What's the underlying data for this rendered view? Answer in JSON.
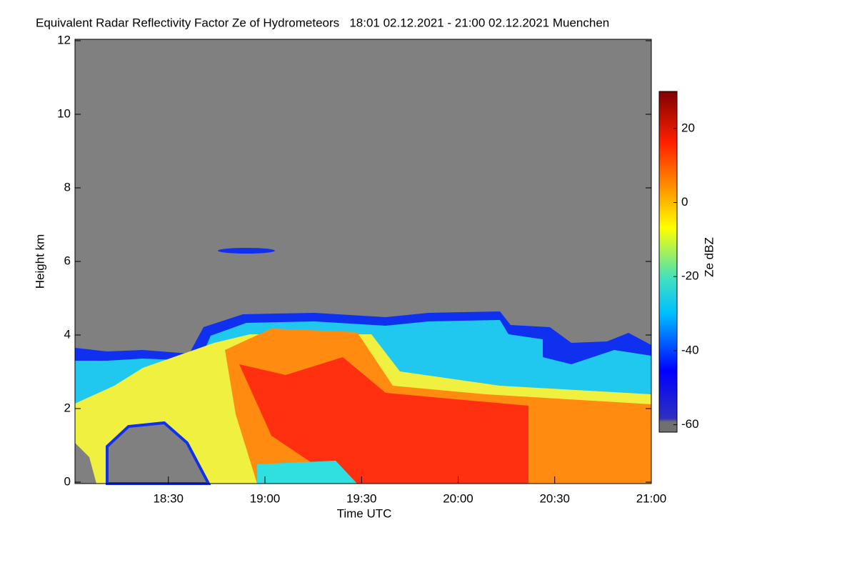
{
  "chart_data": {
    "type": "heatmap",
    "title": "Equivalent Radar Reflectivity Factor Ze of Hydrometeors   18:01 02.12.2021 - 21:00 02.12.2021 Muenchen",
    "xlabel": "Time UTC",
    "ylabel": "Height km",
    "xlim": [
      1081,
      1260
    ],
    "xticks": [
      {
        "value": 1110,
        "label": "18:30"
      },
      {
        "value": 1140,
        "label": "19:00"
      },
      {
        "value": 1170,
        "label": "19:30"
      },
      {
        "value": 1200,
        "label": "20:00"
      },
      {
        "value": 1230,
        "label": "20:30"
      },
      {
        "value": 1260,
        "label": "21:00"
      }
    ],
    "ylim": [
      0,
      12
    ],
    "yticks": [
      0,
      2,
      4,
      6,
      8,
      10,
      12
    ],
    "colorbar": {
      "label": "Ze dBZ",
      "lim": [
        -62,
        30
      ],
      "ticks": [
        -60,
        -40,
        -20,
        0,
        20
      ]
    }
  }
}
